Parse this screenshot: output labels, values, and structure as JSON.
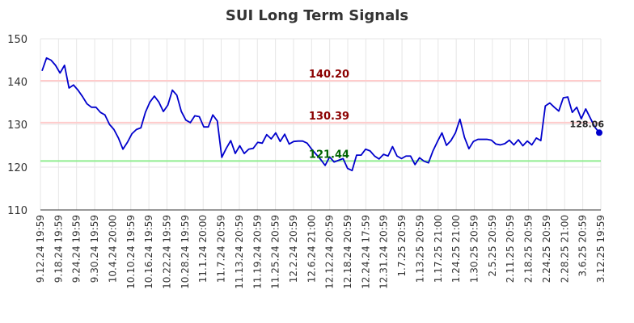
{
  "chart_data": {
    "type": "line",
    "title": "SUI Long Term Signals",
    "xlabel": "",
    "ylabel": "",
    "ylim": [
      110,
      150
    ],
    "yticks": [
      110,
      120,
      130,
      140,
      150
    ],
    "grid": true,
    "x_tick_labels": [
      "9.12.24 19:59",
      "9.18.24 19:59",
      "9.24.24 19:59",
      "9.30.24 19:59",
      "10.4.24 20:00",
      "10.10.24 19:59",
      "10.16.24 19:59",
      "10.22.24 19:59",
      "10.28.24 19:59",
      "11.1.24 20:00",
      "11.7.24 20:59",
      "11.13.24 20:59",
      "11.19.24 20:59",
      "11.25.24 20:59",
      "12.2.24 20:59",
      "12.6.24 21:00",
      "12.12.24 20:59",
      "12.18.24 20:59",
      "12.24.24 17:59",
      "12.31.24 20:59",
      "1.7.25 20:59",
      "1.13.25 20:59",
      "1.17.25 21:00",
      "1.24.25 21:00",
      "1.30.25 20:59",
      "2.5.25 20:59",
      "2.11.25 20:59",
      "2.18.25 20:59",
      "2.24.25 20:59",
      "2.28.25 21:00",
      "3.6.25 20:59",
      "3.12.25 19:59"
    ],
    "series": [
      {
        "color": "#0000cc",
        "values": [
          142.5,
          145.5,
          145,
          143.8,
          142,
          143.8,
          138.5,
          139.2,
          138,
          136.5,
          134.8,
          134,
          134,
          132.8,
          132.2,
          130,
          128.8,
          126.8,
          124.2,
          125.8,
          127.8,
          128.8,
          129.2,
          132.8,
          135.2,
          136.6,
          135.2,
          133,
          134.5,
          138,
          136.8,
          133,
          131,
          130.4,
          132,
          131.8,
          129.4,
          129.4,
          132.2,
          130.8,
          122.3,
          124.4,
          126.2,
          123.2,
          125,
          123.2,
          124.2,
          124.4,
          125.8,
          125.6,
          127.6,
          126.6,
          128,
          126,
          127.7,
          125.4,
          126,
          126.1,
          126.1,
          125.6,
          124.2,
          123,
          121.8,
          120.4,
          122.4,
          121.2,
          121.6,
          122,
          119.7,
          119.2,
          122.8,
          122.8,
          124.2,
          123.8,
          122.6,
          121.9,
          123,
          122.6,
          124.8,
          122.6,
          122,
          122.6,
          122.6,
          120.6,
          122.2,
          121.4,
          121,
          123.8,
          126,
          128,
          125.1,
          126.2,
          128,
          131.2,
          127,
          124.3,
          126,
          126.5,
          126.5,
          126.5,
          126.3,
          125.4,
          125.2,
          125.5,
          126.3,
          125.2,
          126.4,
          125,
          126.1,
          125.2,
          126.8,
          126.2,
          134.3,
          135,
          134,
          133.1,
          136.2,
          136.4,
          132.8,
          134,
          131.3,
          133.6,
          131.5,
          129.4,
          128.06
        ]
      }
    ],
    "levels": [
      {
        "value": 140.2,
        "label": "140.20",
        "line_color": "#ffcccc",
        "text_color": "#8b0000"
      },
      {
        "value": 130.39,
        "label": "130.39",
        "line_color": "#ffcccc",
        "text_color": "#8b0000"
      },
      {
        "value": 121.44,
        "label": "121.44",
        "line_color": "#90ee90",
        "text_color": "#006400"
      }
    ],
    "last_value_label": "128.06"
  }
}
